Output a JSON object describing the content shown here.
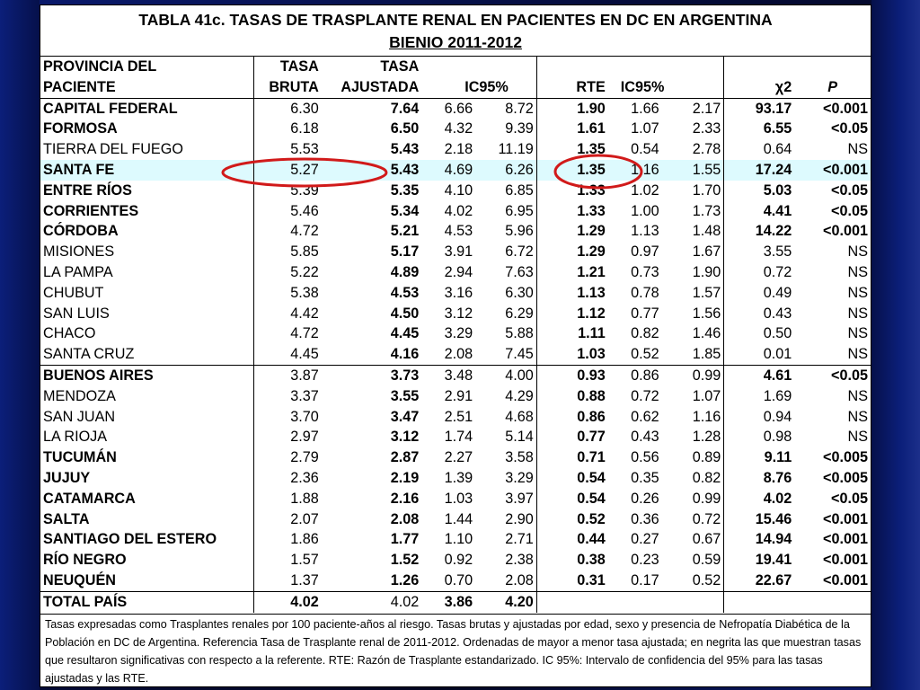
{
  "title": {
    "line1": "TABLA 41c. TASAS DE TRASPLANTE RENAL EN PACIENTES EN DC EN ARGENTINA",
    "line2": "BIENIO 2011-2012"
  },
  "header": {
    "row1": [
      "PROVINCIA DEL",
      "TASA",
      "TASA"
    ],
    "row2": [
      "PACIENTE",
      "BRUTA",
      "AJUSTADA",
      "IC95%",
      "RTE",
      "IC95%",
      "χ2",
      "P"
    ]
  },
  "rows": [
    {
      "prov": "CAPITAL FEDERAL",
      "pb": true,
      "tb": "6.30",
      "ta": "7.64",
      "ic1": "6.66",
      "ic2": "8.72",
      "rte": "1.90",
      "r1": "1.66",
      "r2": "2.17",
      "chi": "93.17",
      "p": "<0.001",
      "sb": true,
      "hl": false
    },
    {
      "prov": "FORMOSA",
      "pb": true,
      "tb": "6.18",
      "ta": "6.50",
      "ic1": "4.32",
      "ic2": "9.39",
      "rte": "1.61",
      "r1": "1.07",
      "r2": "2.33",
      "chi": "6.55",
      "p": "<0.05",
      "sb": true,
      "hl": false
    },
    {
      "prov": "TIERRA DEL FUEGO",
      "pb": false,
      "tb": "5.53",
      "ta": "5.43",
      "ic1": "2.18",
      "ic2": "11.19",
      "rte": "1.35",
      "r1": "0.54",
      "r2": "2.78",
      "chi": "0.64",
      "p": "NS",
      "sb": false,
      "hl": false
    },
    {
      "prov": "SANTA FE",
      "pb": true,
      "tb": "5.27",
      "ta": "5.43",
      "ic1": "4.69",
      "ic2": "6.26",
      "rte": "1.35",
      "r1": "1.16",
      "r2": "1.55",
      "chi": "17.24",
      "p": "<0.001",
      "sb": true,
      "hl": true
    },
    {
      "prov": "ENTRE RÍOS",
      "pb": true,
      "tb": "5.39",
      "ta": "5.35",
      "ic1": "4.10",
      "ic2": "6.85",
      "rte": "1.33",
      "r1": "1.02",
      "r2": "1.70",
      "chi": "5.03",
      "p": "<0.05",
      "sb": true,
      "hl": false
    },
    {
      "prov": "CORRIENTES",
      "pb": true,
      "tb": "5.46",
      "ta": "5.34",
      "ic1": "4.02",
      "ic2": "6.95",
      "rte": "1.33",
      "r1": "1.00",
      "r2": "1.73",
      "chi": "4.41",
      "p": "<0.05",
      "sb": true,
      "hl": false
    },
    {
      "prov": "CÓRDOBA",
      "pb": true,
      "tb": "4.72",
      "ta": "5.21",
      "ic1": "4.53",
      "ic2": "5.96",
      "rte": "1.29",
      "r1": "1.13",
      "r2": "1.48",
      "chi": "14.22",
      "p": "<0.001",
      "sb": true,
      "hl": false
    },
    {
      "prov": "MISIONES",
      "pb": false,
      "tb": "5.85",
      "ta": "5.17",
      "ic1": "3.91",
      "ic2": "6.72",
      "rte": "1.29",
      "r1": "0.97",
      "r2": "1.67",
      "chi": "3.55",
      "p": "NS",
      "sb": false,
      "hl": false
    },
    {
      "prov": "LA PAMPA",
      "pb": false,
      "tb": "5.22",
      "ta": "4.89",
      "ic1": "2.94",
      "ic2": "7.63",
      "rte": "1.21",
      "r1": "0.73",
      "r2": "1.90",
      "chi": "0.72",
      "p": "NS",
      "sb": false,
      "hl": false
    },
    {
      "prov": "CHUBUT",
      "pb": false,
      "tb": "5.38",
      "ta": "4.53",
      "ic1": "3.16",
      "ic2": "6.30",
      "rte": "1.13",
      "r1": "0.78",
      "r2": "1.57",
      "chi": "0.49",
      "p": "NS",
      "sb": false,
      "hl": false
    },
    {
      "prov": "SAN LUIS",
      "pb": false,
      "tb": "4.42",
      "ta": "4.50",
      "ic1": "3.12",
      "ic2": "6.29",
      "rte": "1.12",
      "r1": "0.77",
      "r2": "1.56",
      "chi": "0.43",
      "p": "NS",
      "sb": false,
      "hl": false
    },
    {
      "prov": "CHACO",
      "pb": false,
      "tb": "4.72",
      "ta": "4.45",
      "ic1": "3.29",
      "ic2": "5.88",
      "rte": "1.11",
      "r1": "0.82",
      "r2": "1.46",
      "chi": "0.50",
      "p": "NS",
      "sb": false,
      "hl": false
    },
    {
      "prov": "SANTA CRUZ",
      "pb": false,
      "tb": "4.45",
      "ta": "4.16",
      "ic1": "2.08",
      "ic2": "7.45",
      "rte": "1.03",
      "r1": "0.52",
      "r2": "1.85",
      "chi": "0.01",
      "p": "NS",
      "sb": false,
      "hl": false
    },
    {
      "prov": "BUENOS AIRES",
      "pb": true,
      "tb": "3.87",
      "ta": "3.73",
      "ic1": "3.48",
      "ic2": "4.00",
      "rte": "0.93",
      "r1": "0.86",
      "r2": "0.99",
      "chi": "4.61",
      "p": "<0.05",
      "sb": true,
      "hl": false,
      "sep": true
    },
    {
      "prov": "MENDOZA",
      "pb": false,
      "tb": "3.37",
      "ta": "3.55",
      "ic1": "2.91",
      "ic2": "4.29",
      "rte": "0.88",
      "r1": "0.72",
      "r2": "1.07",
      "chi": "1.69",
      "p": "NS",
      "sb": false,
      "hl": false
    },
    {
      "prov": "SAN JUAN",
      "pb": false,
      "tb": "3.70",
      "ta": "3.47",
      "ic1": "2.51",
      "ic2": "4.68",
      "rte": "0.86",
      "r1": "0.62",
      "r2": "1.16",
      "chi": "0.94",
      "p": "NS",
      "sb": false,
      "hl": false
    },
    {
      "prov": "LA RIOJA",
      "pb": false,
      "tb": "2.97",
      "ta": "3.12",
      "ic1": "1.74",
      "ic2": "5.14",
      "rte": "0.77",
      "r1": "0.43",
      "r2": "1.28",
      "chi": "0.98",
      "p": "NS",
      "sb": false,
      "hl": false
    },
    {
      "prov": "TUCUMÁN",
      "pb": true,
      "tb": "2.79",
      "ta": "2.87",
      "ic1": "2.27",
      "ic2": "3.58",
      "rte": "0.71",
      "r1": "0.56",
      "r2": "0.89",
      "chi": "9.11",
      "p": "<0.005",
      "sb": true,
      "hl": false
    },
    {
      "prov": "JUJUY",
      "pb": true,
      "tb": "2.36",
      "ta": "2.19",
      "ic1": "1.39",
      "ic2": "3.29",
      "rte": "0.54",
      "r1": "0.35",
      "r2": "0.82",
      "chi": "8.76",
      "p": "<0.005",
      "sb": true,
      "hl": false
    },
    {
      "prov": "CATAMARCA",
      "pb": true,
      "tb": "1.88",
      "ta": "2.16",
      "ic1": "1.03",
      "ic2": "3.97",
      "rte": "0.54",
      "r1": "0.26",
      "r2": "0.99",
      "chi": "4.02",
      "p": "<0.05",
      "sb": true,
      "hl": false
    },
    {
      "prov": "SALTA",
      "pb": true,
      "tb": "2.07",
      "ta": "2.08",
      "ic1": "1.44",
      "ic2": "2.90",
      "rte": "0.52",
      "r1": "0.36",
      "r2": "0.72",
      "chi": "15.46",
      "p": "<0.001",
      "sb": true,
      "hl": false
    },
    {
      "prov": "SANTIAGO DEL ESTERO",
      "pb": true,
      "tb": "1.86",
      "ta": "1.77",
      "ic1": "1.10",
      "ic2": "2.71",
      "rte": "0.44",
      "r1": "0.27",
      "r2": "0.67",
      "chi": "14.94",
      "p": "<0.001",
      "sb": true,
      "hl": false
    },
    {
      "prov": "RÍO NEGRO",
      "pb": true,
      "tb": "1.57",
      "ta": "1.52",
      "ic1": "0.92",
      "ic2": "2.38",
      "rte": "0.38",
      "r1": "0.23",
      "r2": "0.59",
      "chi": "19.41",
      "p": "<0.001",
      "sb": true,
      "hl": false
    },
    {
      "prov": "NEUQUÉN",
      "pb": true,
      "tb": "1.37",
      "ta": "1.26",
      "ic1": "0.70",
      "ic2": "2.08",
      "rte": "0.31",
      "r1": "0.17",
      "r2": "0.52",
      "chi": "22.67",
      "p": "<0.001",
      "sb": true,
      "hl": false
    }
  ],
  "total": {
    "prov": "TOTAL PAÍS",
    "tb": "4.02",
    "ta": "4.02",
    "ic1": "3.86",
    "ic2": "4.20"
  },
  "footnote": "Tasas expresadas como Trasplantes renales por 100 paciente-años al riesgo. Tasas brutas y ajustadas por edad, sexo y presencia de Nefropatía Diabética de la Población en DC de Argentina. Referencia Tasa de Trasplante renal de 2011-2012. Ordenadas de mayor a menor tasa ajustada; en negrita las que muestran tasas que resultaron significativas con respecto a la referente. RTE: Razón de Trasplante estandarizado. IC 95%: Intervalo de confidencia del 95% para las tasas ajustadas y las RTE.",
  "colors": {
    "highlight_row": "#ddfafe",
    "annotation": "#d11a1a",
    "background": "#050c3a"
  }
}
